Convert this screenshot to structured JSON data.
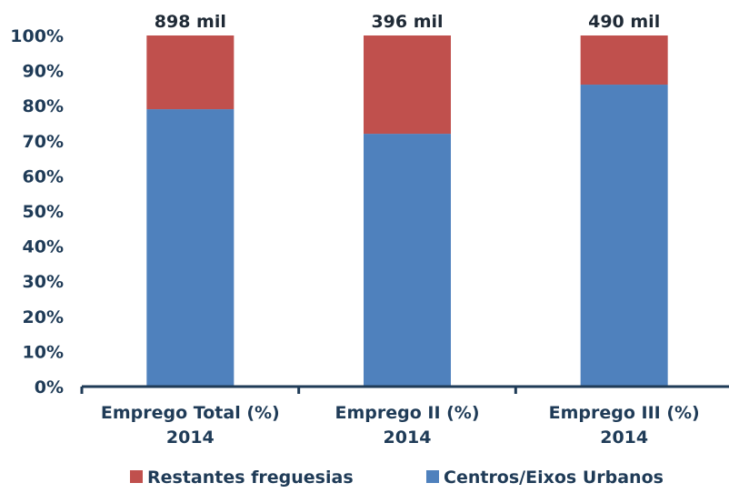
{
  "chart_data": {
    "type": "bar",
    "stacked": true,
    "categories": [
      [
        "Emprego Total (%)",
        "2014"
      ],
      [
        "Emprego II (%)",
        "2014"
      ],
      [
        "Emprego III (%)",
        "2014"
      ]
    ],
    "series": [
      {
        "name": "Centros/Eixos Urbanos",
        "color": "#4f81bd",
        "values": [
          79,
          72,
          86
        ]
      },
      {
        "name": "Restantes freguesias",
        "color": "#c0504d",
        "values": [
          21,
          28,
          14
        ]
      }
    ],
    "data_labels": [
      "898 mil",
      "396 mil",
      "490 mil"
    ],
    "ylim": [
      0,
      100
    ],
    "y_ticks": [
      "0%",
      "10%",
      "20%",
      "30%",
      "40%",
      "50%",
      "60%",
      "70%",
      "80%",
      "90%",
      "100%"
    ],
    "grid": false,
    "legend": {
      "position": "bottom",
      "order": [
        "Restantes freguesias",
        "Centros/Eixos Urbanos"
      ]
    },
    "title": "",
    "xlabel": "",
    "ylabel": ""
  }
}
